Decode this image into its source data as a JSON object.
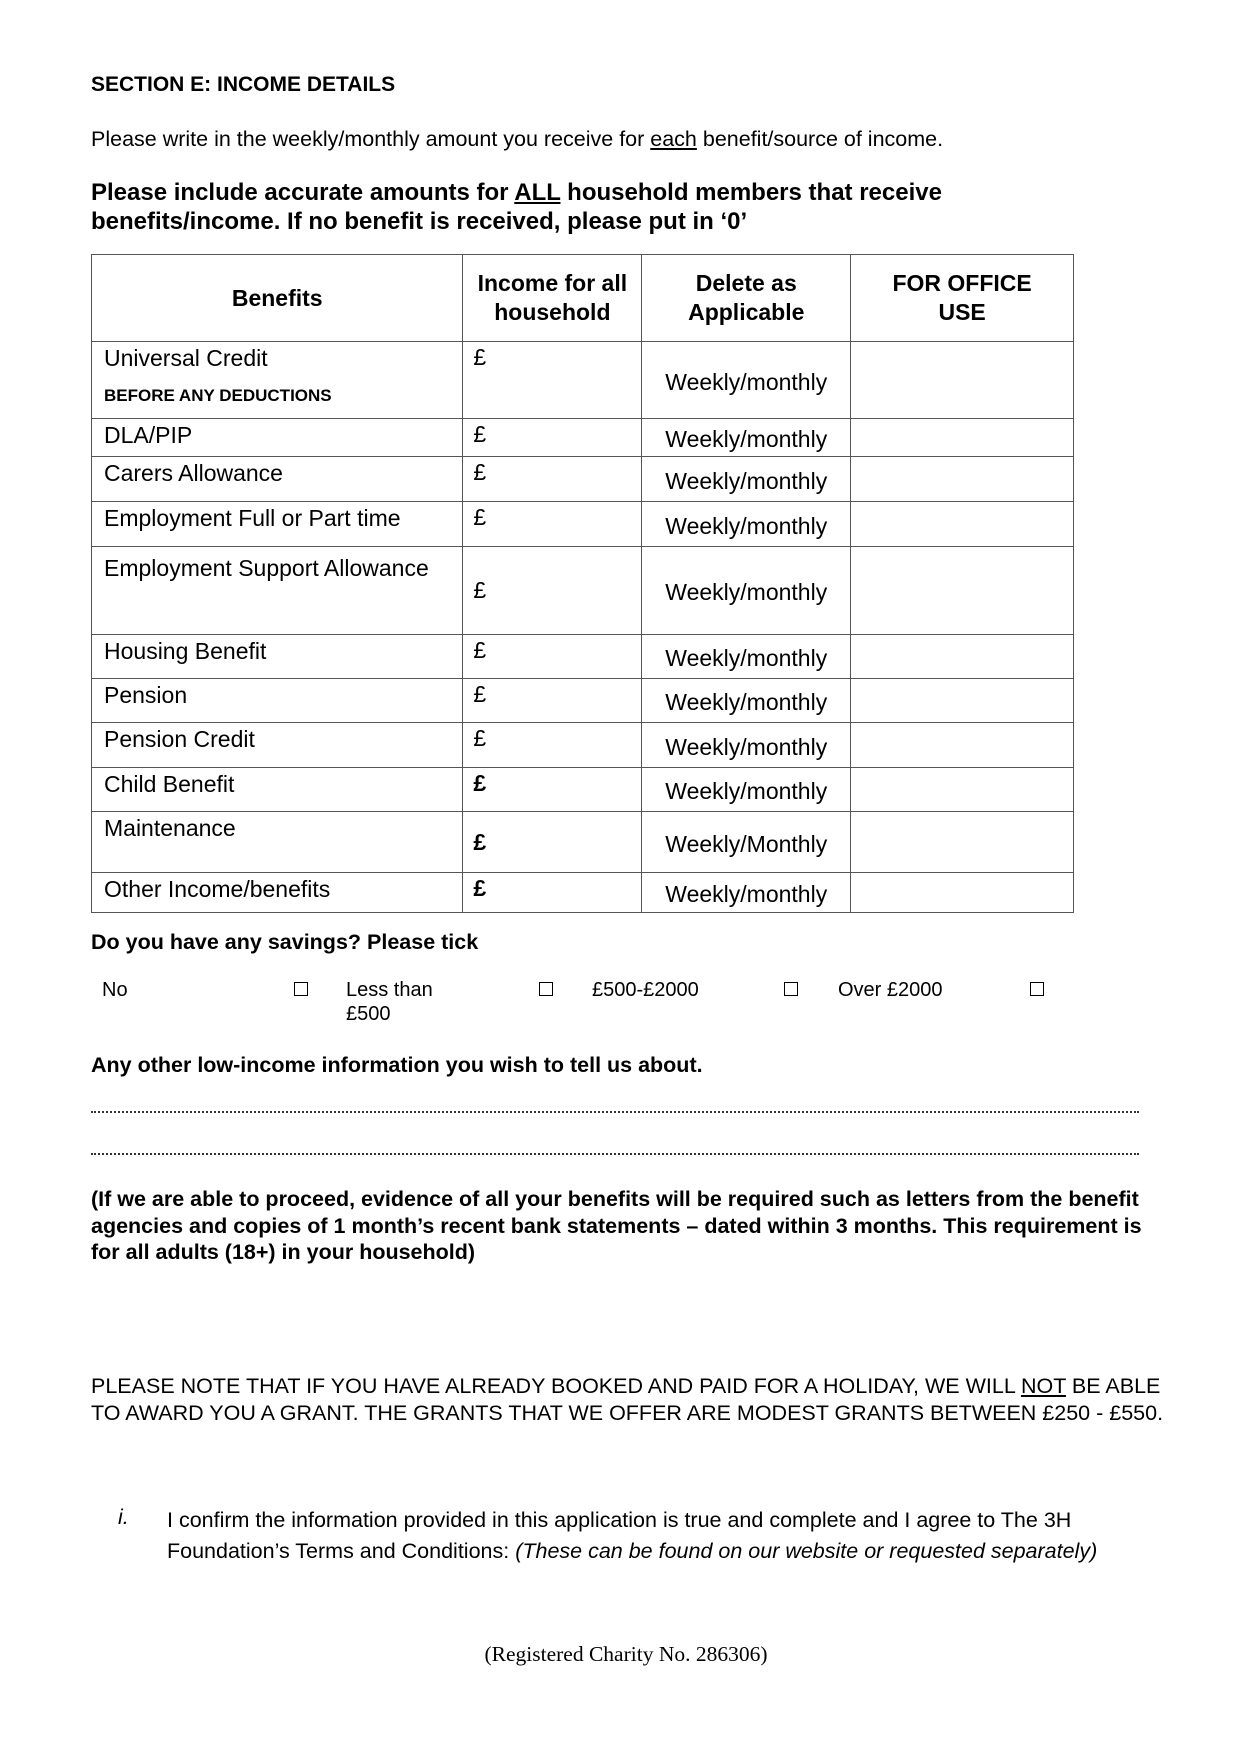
{
  "section_title": "SECTION E: INCOME DETAILS",
  "intro": {
    "before": "Please write in the weekly/monthly amount you receive for ",
    "underlined": "each",
    "after": " benefit/source of income."
  },
  "instruction": {
    "before": "Please include accurate amounts for ",
    "underlined": "ALL",
    "after": " household members that receive benefits/income.  If no benefit is received, please put in ‘0’"
  },
  "table": {
    "headers": [
      "Benefits",
      "Income for all household",
      "Delete as Applicable",
      "FOR OFFICE USE"
    ],
    "rows": [
      {
        "benefit": "Universal Credit",
        "sub": "BEFORE ANY DEDUCTIONS",
        "currency": "£",
        "period": "Weekly/monthly"
      },
      {
        "benefit": "DLA/PIP",
        "currency": "£",
        "period": "Weekly/monthly"
      },
      {
        "benefit": "Carers Allowance",
        "currency": "£",
        "period": "Weekly/monthly"
      },
      {
        "benefit": "Employment Full or Part time",
        "currency": "£",
        "period": "Weekly/monthly"
      },
      {
        "benefit": "Employment Support Allowance",
        "currency": "£",
        "period": "Weekly/monthly"
      },
      {
        "benefit": "Housing Benefit",
        "currency": "£",
        "period": "Weekly/monthly"
      },
      {
        "benefit": "Pension",
        "currency": "£",
        "period": "Weekly/monthly"
      },
      {
        "benefit": "Pension Credit",
        "currency": "£",
        "period": "Weekly/monthly"
      },
      {
        "benefit": "Child Benefit",
        "currency": "£",
        "period": "Weekly/monthly"
      },
      {
        "benefit": "Maintenance",
        "currency": "£",
        "period": "Weekly/Monthly"
      },
      {
        "benefit": "Other Income/benefits",
        "currency": "£",
        "period": "Weekly/monthly"
      }
    ]
  },
  "savings": {
    "question": "Do you have any savings? Please tick",
    "options": [
      "No",
      "Less than £500",
      "£500-£2000",
      "Over £2000"
    ]
  },
  "other_info": {
    "question": "Any other low-income information you wish to tell us about."
  },
  "evidence_note": "(If we are able to proceed, evidence of all your benefits will be required such as letters from the benefit agencies and copies of 1 month’s recent bank statements – dated within 3 months. This requirement is for all adults (18+) in your household)",
  "holiday_note": {
    "before": "PLEASE NOTE THAT IF YOU HAVE ALREADY BOOKED AND PAID FOR A HOLIDAY, WE WILL ",
    "underlined": "NOT",
    "after": " BE ABLE TO AWARD YOU A GRANT. THE GRANTS THAT WE OFFER ARE MODEST GRANTS BETWEEN £250 - £550."
  },
  "confirmation": {
    "marker": "i.",
    "text": "I confirm the information provided in this application is true and complete and I agree to The 3H Foundation’s Terms and Conditions: ",
    "italic": "(These can be found on our website or requested separately)"
  },
  "footer": "(Registered Charity No. 286306)"
}
